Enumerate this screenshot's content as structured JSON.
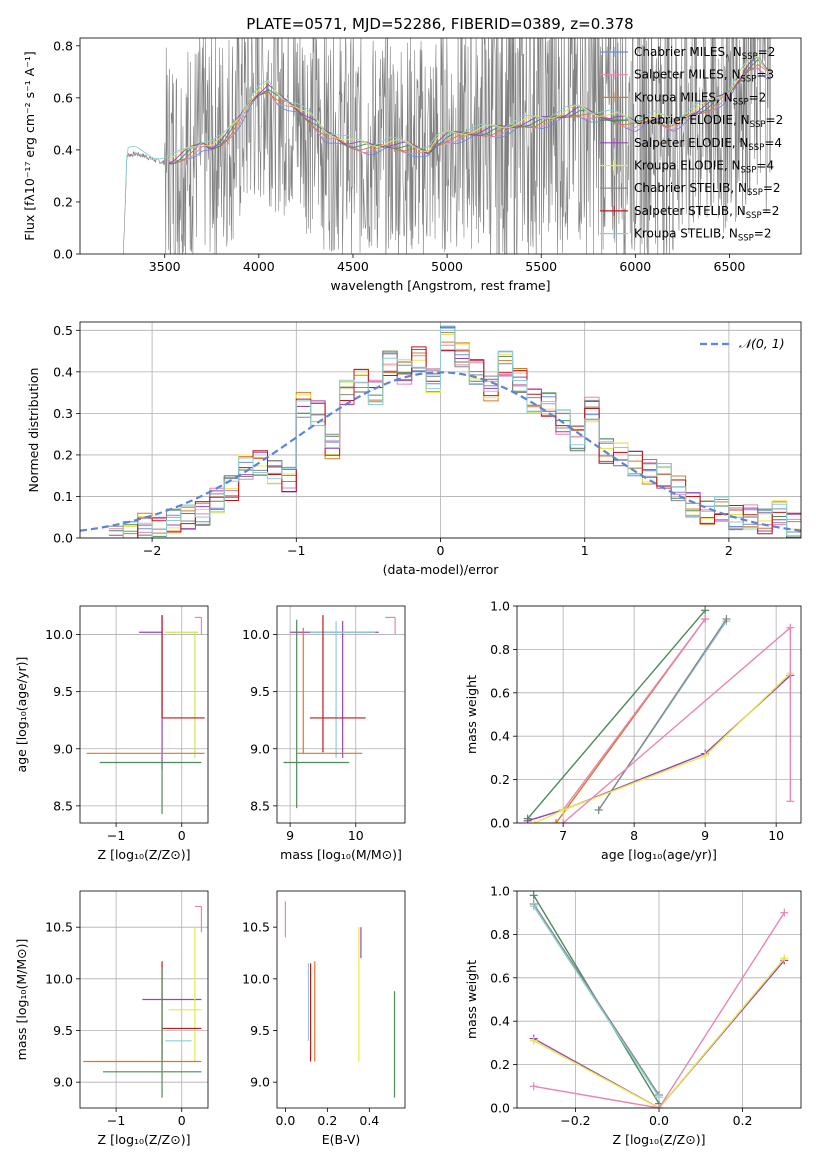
{
  "figure": {
    "title": "PLATE=0571, MJD=52286, FIBERID=0389, z=0.378"
  },
  "colors": {
    "chabrier_miles": "#6a8fd8",
    "salpeter_miles": "#e884b8",
    "kroupa_miles": "#d87a2a",
    "chabrier_elodie": "#c8e85a",
    "salpeter_elodie": "#9a44b8",
    "kroupa_elodie": "#e8e84a",
    "chabrier_stelib": "#888888",
    "salpeter_stelib": "#c01818",
    "kroupa_stelib": "#8ecdd8",
    "green": "#4e8a5a",
    "normal": "#5b86d8",
    "data": "#808080",
    "grid": "#b0b0b0"
  },
  "chart_data": [
    {
      "id": "spectrum",
      "type": "line",
      "title": "",
      "xlabel": "wavelength [Angstrom, rest frame]",
      "ylabel": "Flux [fλ10⁻¹⁷ erg cm⁻² s⁻¹ A⁻¹]",
      "xlim": [
        3050,
        6880
      ],
      "ylim": [
        0,
        0.83
      ],
      "xticks": [
        3500,
        4000,
        4500,
        5000,
        5500,
        6000,
        6500
      ],
      "yticks": [
        0.0,
        0.2,
        0.4,
        0.6,
        0.8
      ],
      "grid": false,
      "legend_position": "top-right",
      "legend": [
        {
          "label": "Chabrier MILES, N",
          "sub": "SSP",
          "tail": "=2",
          "color": "#6a8fd8"
        },
        {
          "label": "Salpeter MILES, N",
          "sub": "SSP",
          "tail": "=3",
          "color": "#e884b8"
        },
        {
          "label": "Kroupa MILES, N",
          "sub": "SSP",
          "tail": "=2",
          "color": "#d87a2a"
        },
        {
          "label": "Chabrier ELODIE, N",
          "sub": "SSP",
          "tail": "=2",
          "color": "#4e8a5a"
        },
        {
          "label": "Salpeter ELODIE, N",
          "sub": "SSP",
          "tail": "=4",
          "color": "#9a44b8"
        },
        {
          "label": "Kroupa ELODIE, N",
          "sub": "SSP",
          "tail": "=4",
          "color": "#e8e84a"
        },
        {
          "label": "Chabrier STELIB, N",
          "sub": "SSP",
          "tail": "=2",
          "color": "#888888"
        },
        {
          "label": "Salpeter STELIB, N",
          "sub": "SSP",
          "tail": "=2",
          "color": "#c01818"
        },
        {
          "label": "Kroupa STELIB, N",
          "sub": "SSP",
          "tail": "=2",
          "color": "#8ecdd8"
        }
      ],
      "model_curve": {
        "wavelength": [
          3280,
          3300,
          3350,
          3400,
          3450,
          3500,
          3550,
          3600,
          3650,
          3700,
          3750,
          3800,
          3850,
          3900,
          3950,
          4000,
          4050,
          4100,
          4150,
          4200,
          4250,
          4300,
          4350,
          4400,
          4450,
          4500,
          4600,
          4700,
          4800,
          4850,
          4900,
          4950,
          5000,
          5100,
          5200,
          5300,
          5400,
          5500,
          5600,
          5700,
          5800,
          5900,
          6000,
          6100,
          6200,
          6300,
          6400,
          6500,
          6550,
          6600,
          6650,
          6700
        ],
        "flux": [
          0.0,
          0.38,
          0.385,
          0.375,
          0.36,
          0.35,
          0.36,
          0.38,
          0.4,
          0.42,
          0.41,
          0.43,
          0.47,
          0.52,
          0.58,
          0.62,
          0.64,
          0.6,
          0.58,
          0.56,
          0.53,
          0.5,
          0.46,
          0.45,
          0.43,
          0.42,
          0.41,
          0.42,
          0.41,
          0.4,
          0.39,
          0.43,
          0.45,
          0.46,
          0.47,
          0.48,
          0.5,
          0.51,
          0.53,
          0.55,
          0.53,
          0.52,
          0.5,
          0.52,
          0.5,
          0.54,
          0.57,
          0.62,
          0.67,
          0.72,
          0.74,
          0.7
        ]
      }
    },
    {
      "id": "residuals",
      "type": "line",
      "xlabel": "(data-model)/error",
      "ylabel": "Normed distribution",
      "xlim": [
        -2.5,
        2.5
      ],
      "ylim": [
        0,
        0.52
      ],
      "xticks": [
        -2,
        -1,
        0,
        1,
        2
      ],
      "yticks": [
        0.0,
        0.1,
        0.2,
        0.3,
        0.4,
        0.5
      ],
      "grid": true,
      "legend_position": "top-right",
      "legend_label": "𝒩(0, 1)",
      "bin_edges": [
        -2.3,
        -2.2,
        -2.1,
        -2.0,
        -1.9,
        -1.8,
        -1.7,
        -1.6,
        -1.5,
        -1.4,
        -1.3,
        -1.2,
        -1.1,
        -1.0,
        -0.9,
        -0.8,
        -0.7,
        -0.6,
        -0.5,
        -0.4,
        -0.3,
        -0.2,
        -0.1,
        0.0,
        0.1,
        0.2,
        0.3,
        0.4,
        0.5,
        0.6,
        0.7,
        0.8,
        0.9,
        1.0,
        1.1,
        1.2,
        1.3,
        1.4,
        1.5,
        1.6,
        1.7,
        1.8,
        1.9,
        2.0,
        2.1,
        2.2,
        2.3,
        2.4,
        2.5
      ],
      "hist_values": [
        0.0,
        0.01,
        0.03,
        0.02,
        0.04,
        0.05,
        0.06,
        0.09,
        0.12,
        0.17,
        0.18,
        0.16,
        0.14,
        0.32,
        0.3,
        0.22,
        0.35,
        0.38,
        0.35,
        0.42,
        0.4,
        0.43,
        0.38,
        0.48,
        0.44,
        0.4,
        0.36,
        0.42,
        0.38,
        0.33,
        0.32,
        0.28,
        0.24,
        0.31,
        0.21,
        0.2,
        0.18,
        0.16,
        0.15,
        0.12,
        0.08,
        0.06,
        0.07,
        0.05,
        0.05,
        0.04,
        0.06,
        0.03
      ]
    },
    {
      "id": "age-vs-Z",
      "type": "scatter",
      "xlabel": "Z [log₁₀(Z/Z⊙)]",
      "ylabel": "age  [log₁₀(age/yr)]",
      "xlim": [
        -1.55,
        0.4
      ],
      "ylim": [
        8.35,
        10.25
      ],
      "xticks": [
        -1,
        0
      ],
      "yticks": [
        8.5,
        9.0,
        9.5,
        10.0
      ],
      "grid": true,
      "errbars": [
        {
          "x": -0.3,
          "y": 10.02,
          "xerr": [
            0.35,
            0.0
          ],
          "yerr": [
            1.2,
            0.15
          ],
          "color": "#9a44b8"
        },
        {
          "x": 0.2,
          "y": 10.02,
          "xerr": [
            0.45,
            0.05
          ],
          "yerr": [
            1.1,
            0.0
          ],
          "color": "#c8e85a"
        },
        {
          "x": -0.3,
          "y": 9.27,
          "xerr": [
            0.0,
            0.65
          ],
          "yerr": [
            0.0,
            0.9
          ],
          "color": "#c01818"
        },
        {
          "x": -0.3,
          "y": 8.96,
          "xerr": [
            1.15,
            0.65
          ],
          "yerr": [
            0.0,
            0.0
          ],
          "color": "#d87a2a"
        },
        {
          "x": -0.3,
          "y": 8.88,
          "xerr": [
            0.95,
            0.6
          ],
          "yerr": [
            0.45,
            0.0
          ],
          "color": "#4e8a5a"
        },
        {
          "x": 0.3,
          "y": 10.15,
          "xerr": [
            0.1,
            0.0
          ],
          "yerr": [
            0.0,
            0.0
          ],
          "color": "#e884b8"
        },
        {
          "x": 0.3,
          "y": 10.1,
          "xerr": [
            0.0,
            0.0
          ],
          "yerr": [
            0.1,
            0.05
          ],
          "color": "#e884b8"
        }
      ]
    },
    {
      "id": "age-vs-mass",
      "type": "scatter",
      "xlabel": "mass [log₁₀(M/M⊙)]",
      "ylabel": "",
      "xlim": [
        8.8,
        10.75
      ],
      "ylim": [
        8.35,
        10.25
      ],
      "xticks": [
        9,
        10
      ],
      "yticks": [
        8.5,
        9.0,
        9.5,
        10.0
      ],
      "grid": true,
      "errbars": [
        {
          "x": 9.8,
          "y": 10.02,
          "xerr": [
            0.8,
            0.55
          ],
          "yerr": [
            1.1,
            0.1
          ],
          "color": "#9a44b8"
        },
        {
          "x": 9.7,
          "y": 10.02,
          "xerr": [
            0.4,
            0.6
          ],
          "yerr": [
            1.1,
            0.1
          ],
          "color": "#8ecdd8"
        },
        {
          "x": 9.5,
          "y": 9.27,
          "xerr": [
            0.2,
            0.65
          ],
          "yerr": [
            0.3,
            0.9
          ],
          "color": "#c01818"
        },
        {
          "x": 9.2,
          "y": 8.96,
          "xerr": [
            0.1,
            0.9
          ],
          "yerr": [
            0.0,
            1.1
          ],
          "color": "#d87a2a"
        },
        {
          "x": 9.1,
          "y": 8.88,
          "xerr": [
            0.2,
            0.8
          ],
          "yerr": [
            0.4,
            1.25
          ],
          "color": "#4e8a5a"
        },
        {
          "x": 10.6,
          "y": 10.15,
          "xerr": [
            0.15,
            0.0
          ],
          "yerr": [
            0.0,
            0.0
          ],
          "color": "#e884b8"
        },
        {
          "x": 10.6,
          "y": 10.1,
          "xerr": [
            0.0,
            0.0
          ],
          "yerr": [
            0.1,
            0.05
          ],
          "color": "#e884b8"
        }
      ]
    },
    {
      "id": "weight-vs-age",
      "type": "line",
      "xlabel": "age  [log₁₀(age/yr)]",
      "ylabel": "mass weight",
      "xlim": [
        6.35,
        10.35
      ],
      "ylim": [
        0.0,
        1.0
      ],
      "xticks": [
        7,
        8,
        9,
        10
      ],
      "yticks": [
        0.0,
        0.2,
        0.4,
        0.6,
        0.8,
        1.0
      ],
      "grid": true,
      "series": [
        {
          "x": [
            6.5,
            9.0
          ],
          "y": [
            0.02,
            0.98
          ],
          "color": "#4e8a5a"
        },
        {
          "x": [
            6.9,
            9.0
          ],
          "y": [
            0.0,
            0.94
          ],
          "color": "#d87a2a"
        },
        {
          "x": [
            7.0,
            9.0
          ],
          "y": [
            0.06,
            0.94
          ],
          "color": "#e884b8"
        },
        {
          "x": [
            7.5,
            9.3
          ],
          "y": [
            0.06,
            0.93
          ],
          "color": "#8ecdd8"
        },
        {
          "x": [
            7.5,
            9.3
          ],
          "y": [
            0.06,
            0.94
          ],
          "color": "#888888"
        },
        {
          "x": [
            6.5,
            7.0,
            9.0,
            10.2
          ],
          "y": [
            0.01,
            0.06,
            0.32,
            0.68
          ],
          "color": "#9a44b8"
        },
        {
          "x": [
            6.6,
            7.0,
            9.0,
            10.2
          ],
          "y": [
            0.0,
            0.06,
            0.31,
            0.69
          ],
          "color": "#e8e84a"
        },
        {
          "x": [
            7.0,
            10.2
          ],
          "y": [
            0.0,
            0.9
          ],
          "color": "#e884b8"
        }
      ]
    },
    {
      "id": "mass-vs-Z",
      "type": "scatter",
      "xlabel": "Z [log₁₀(Z/Z⊙)]",
      "ylabel": "mass [log₁₀(M/M⊙)]",
      "xlim": [
        -1.55,
        0.4
      ],
      "ylim": [
        8.75,
        10.85
      ],
      "xticks": [
        -1,
        0
      ],
      "yticks": [
        9.0,
        9.5,
        10.0,
        10.5
      ],
      "grid": true,
      "errbars": [
        {
          "x": -0.3,
          "y": 9.8,
          "xerr": [
            0.3,
            0.6
          ],
          "yerr": [
            0.0,
            0.0
          ],
          "color": "#9a44b8"
        },
        {
          "x": 0.2,
          "y": 9.7,
          "xerr": [
            0.4,
            0.1
          ],
          "yerr": [
            0.5,
            0.8
          ],
          "color": "#e8e84a"
        },
        {
          "x": -0.3,
          "y": 9.52,
          "xerr": [
            0.0,
            0.6
          ],
          "yerr": [
            0.3,
            0.65
          ],
          "color": "#c01818"
        },
        {
          "x": -0.3,
          "y": 9.2,
          "xerr": [
            1.2,
            0.6
          ],
          "yerr": [
            0.0,
            0.0
          ],
          "color": "#d87a2a"
        },
        {
          "x": -0.3,
          "y": 9.1,
          "xerr": [
            0.9,
            0.6
          ],
          "yerr": [
            0.25,
            1.0
          ],
          "color": "#4e8a5a"
        },
        {
          "x": -0.25,
          "y": 9.4,
          "xerr": [
            0.0,
            0.4
          ],
          "yerr": [
            0.0,
            0.0
          ],
          "color": "#8ecdd8"
        },
        {
          "x": 0.3,
          "y": 10.7,
          "xerr": [
            0.1,
            0.0
          ],
          "yerr": [
            0.25,
            0.0
          ],
          "color": "#e884b8"
        }
      ]
    },
    {
      "id": "mass-vs-ebv",
      "type": "scatter",
      "xlabel": "E(B-V)",
      "ylabel": "",
      "xlim": [
        -0.04,
        0.57
      ],
      "ylim": [
        8.75,
        10.85
      ],
      "xticks": [
        0.0,
        0.2,
        0.4
      ],
      "yticks": [
        9.0,
        9.5,
        10.0,
        10.5
      ],
      "grid": false,
      "errbars": [
        {
          "x": 0.0,
          "y": 10.55,
          "xerr": [
            0.0,
            0.0
          ],
          "yerr": [
            0.15,
            0.2
          ],
          "color": "#e884b8"
        },
        {
          "x": 0.11,
          "y": 9.7,
          "xerr": [
            0.0,
            0.0
          ],
          "yerr": [
            0.3,
            0.45
          ],
          "color": "#8ecdd8"
        },
        {
          "x": 0.12,
          "y": 9.65,
          "xerr": [
            0.0,
            0.0
          ],
          "yerr": [
            0.45,
            0.5
          ],
          "color": "#c01818"
        },
        {
          "x": 0.14,
          "y": 9.65,
          "xerr": [
            0.0,
            0.0
          ],
          "yerr": [
            0.45,
            0.52
          ],
          "color": "#d87a2a"
        },
        {
          "x": 0.35,
          "y": 9.9,
          "xerr": [
            0.0,
            0.0
          ],
          "yerr": [
            0.7,
            0.6
          ],
          "color": "#e8e84a"
        },
        {
          "x": 0.36,
          "y": 10.3,
          "xerr": [
            0.0,
            0.0
          ],
          "yerr": [
            0.1,
            0.2
          ],
          "color": "#9a44b8"
        },
        {
          "x": 0.52,
          "y": 9.3,
          "xerr": [
            0.0,
            0.0
          ],
          "yerr": [
            0.45,
            0.58
          ],
          "color": "#4e8a5a"
        }
      ]
    },
    {
      "id": "weight-vs-Z",
      "type": "line",
      "xlabel": "Z [log₁₀(Z/Z⊙)]",
      "ylabel": "mass weight",
      "xlim": [
        -0.34,
        0.34
      ],
      "ylim": [
        0.0,
        1.0
      ],
      "xticks": [
        -0.2,
        0.0,
        0.2
      ],
      "yticks": [
        0.0,
        0.2,
        0.4,
        0.6,
        0.8,
        1.0
      ],
      "grid": true,
      "series": [
        {
          "x": [
            -0.3,
            0.0
          ],
          "y": [
            0.98,
            0.02
          ],
          "color": "#4e8a5a"
        },
        {
          "x": [
            -0.3,
            0.0
          ],
          "y": [
            0.94,
            0.06
          ],
          "color": "#888888"
        },
        {
          "x": [
            -0.3,
            0.0
          ],
          "y": [
            0.93,
            0.05
          ],
          "color": "#8ecdd8"
        },
        {
          "x": [
            -0.3,
            0.0,
            0.3
          ],
          "y": [
            0.32,
            0.0,
            0.68
          ],
          "color": "#9a44b8"
        },
        {
          "x": [
            -0.3,
            0.0,
            0.3
          ],
          "y": [
            0.31,
            0.0,
            0.69
          ],
          "color": "#e8e84a"
        },
        {
          "x": [
            -0.3,
            0.0,
            0.3
          ],
          "y": [
            0.1,
            0.0,
            0.9
          ],
          "color": "#e884b8"
        }
      ]
    }
  ]
}
